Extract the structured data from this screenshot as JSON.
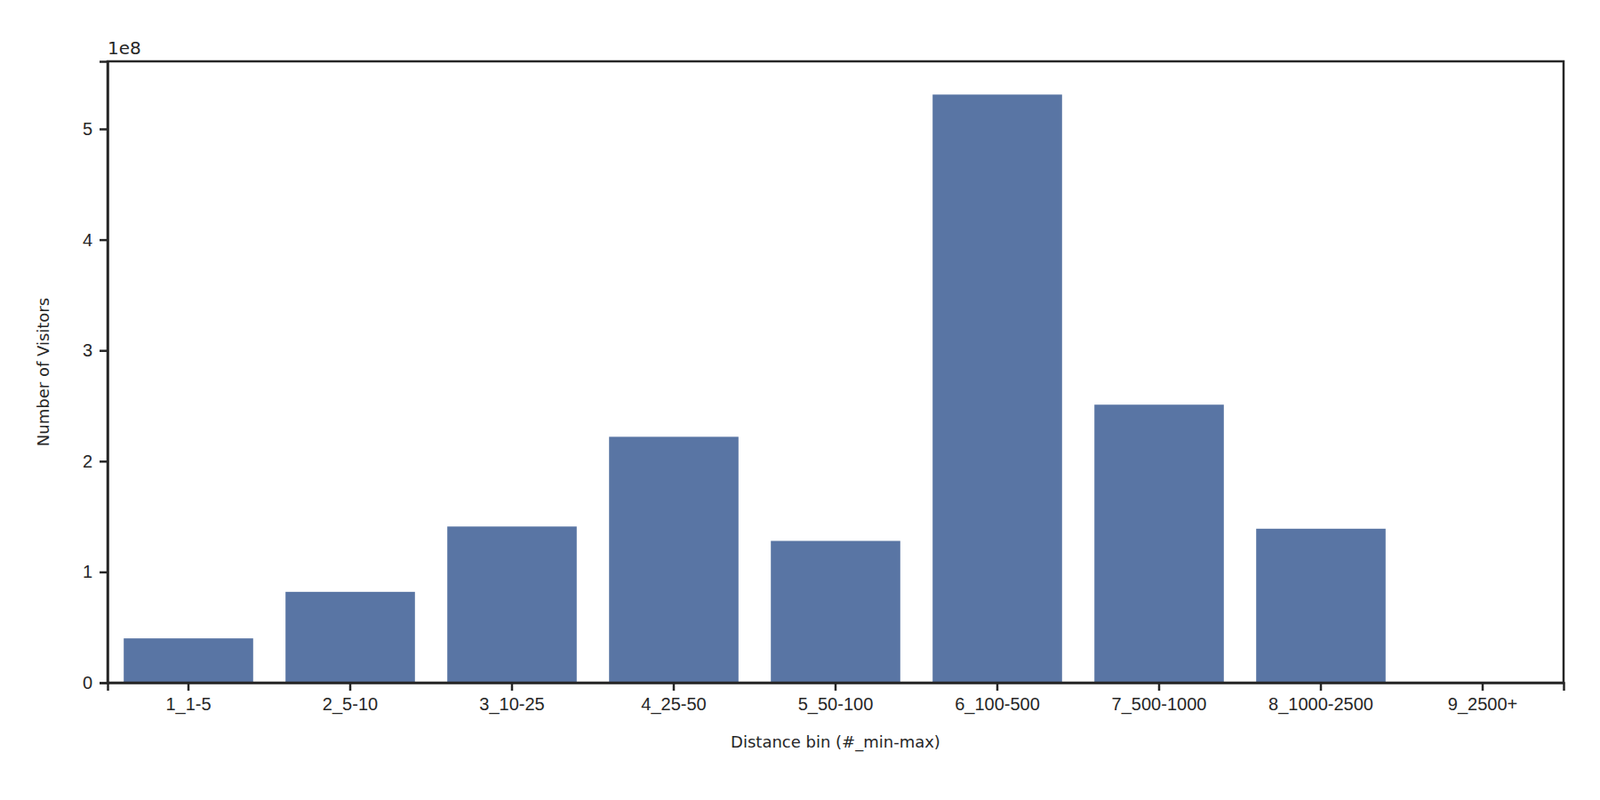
{
  "chart_data": {
    "type": "bar",
    "xlabel": "Distance bin (#_min-max)",
    "ylabel": "Number of Visitors",
    "annotations": [
      {
        "text": "1e8"
      }
    ],
    "categories": [
      "1_1-5",
      "2_5-10",
      "3_10-25",
      "4_25-50",
      "5_50-100",
      "6_100-500",
      "7_500-1000",
      "8_1000-2500",
      "9_2500+"
    ],
    "values": [
      0.4,
      0.82,
      1.41,
      2.22,
      1.28,
      5.31,
      2.51,
      1.39,
      0
    ],
    "color": "#5975a4",
    "ylim": [
      0,
      5.61
    ],
    "yticks": [
      0,
      1,
      2,
      3,
      4,
      5
    ],
    "grid": false
  }
}
